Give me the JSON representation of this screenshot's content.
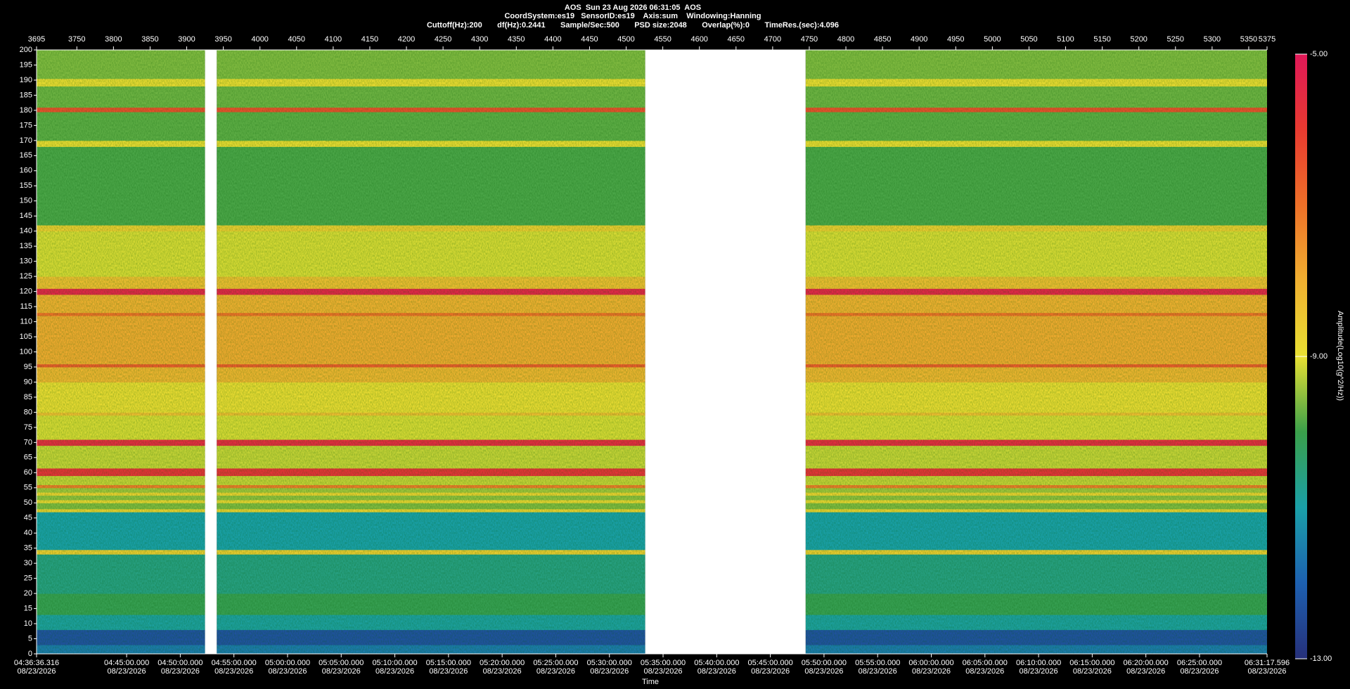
{
  "chart_data": {
    "type": "spectrogram",
    "title": "AOS  Sun 23 Aug 2026 06:31:05  AOS",
    "subtitle": "CoordSystem:es19   SensorID:es19    Axis:sum    Windowing:Hanning",
    "settings_line": "Cuttoff(Hz):200       df(Hz):0.2441       Sample/Sec:500       PSD size:2048       Overlap(%):0       TimeRes.(sec):4.096",
    "x2_label": "Time",
    "colorbar_label": "Amplitude(Log10(g^2/Hz))",
    "xlim": [
      3695,
      5375
    ],
    "xticks": [
      3695,
      3750,
      3800,
      3850,
      3900,
      3950,
      4000,
      4050,
      4100,
      4150,
      4200,
      4250,
      4300,
      4350,
      4400,
      4450,
      4500,
      4550,
      4600,
      4650,
      4700,
      4750,
      4800,
      4850,
      4900,
      4950,
      5000,
      5050,
      5100,
      5150,
      5200,
      5250,
      5300,
      5350,
      5375
    ],
    "ylim": [
      0,
      200
    ],
    "yticks": [
      0,
      5,
      10,
      15,
      20,
      25,
      30,
      35,
      40,
      45,
      50,
      55,
      60,
      65,
      70,
      75,
      80,
      85,
      90,
      95,
      100,
      105,
      110,
      115,
      120,
      125,
      130,
      135,
      140,
      145,
      150,
      155,
      160,
      165,
      170,
      175,
      180,
      185,
      190,
      195,
      200
    ],
    "x2lim": [
      16596.316,
      23477.596
    ],
    "x2ticks": [
      {
        "value": 16596.316,
        "label": "04:36:36.316"
      },
      {
        "value": 17100,
        "label": "04:45:00.000"
      },
      {
        "value": 17400,
        "label": "04:50:00.000"
      },
      {
        "value": 17700,
        "label": "04:55:00.000"
      },
      {
        "value": 18000,
        "label": "05:00:00.000"
      },
      {
        "value": 18300,
        "label": "05:05:00.000"
      },
      {
        "value": 18600,
        "label": "05:10:00.000"
      },
      {
        "value": 18900,
        "label": "05:15:00.000"
      },
      {
        "value": 19200,
        "label": "05:20:00.000"
      },
      {
        "value": 19500,
        "label": "05:25:00.000"
      },
      {
        "value": 19800,
        "label": "05:30:00.000"
      },
      {
        "value": 20100,
        "label": "05:35:00.000"
      },
      {
        "value": 20400,
        "label": "05:40:00.000"
      },
      {
        "value": 20700,
        "label": "05:45:00.000"
      },
      {
        "value": 21000,
        "label": "05:50:00.000"
      },
      {
        "value": 21300,
        "label": "05:55:00.000"
      },
      {
        "value": 21600,
        "label": "06:00:00.000"
      },
      {
        "value": 21900,
        "label": "06:05:00.000"
      },
      {
        "value": 22200,
        "label": "06:10:00.000"
      },
      {
        "value": 22500,
        "label": "06:15:00.000"
      },
      {
        "value": 22800,
        "label": "06:20:00.000"
      },
      {
        "value": 23100,
        "label": "06:25:00.000"
      },
      {
        "value": 23477.596,
        "label": "06:31:17.596"
      }
    ],
    "x2tick_dates": [
      "08/23/2026",
      "08/23/2026",
      "08/23/2026",
      "08/23/2026",
      "08/23/2026",
      "08/23/2026",
      "08/23/2026",
      "08/23/2026",
      "08/23/2026",
      "08/23/2026",
      "08/23/2026",
      "08/23/2026",
      "08/23/2026",
      "08/23/2026",
      "08/23/2026",
      "08/23/2026",
      "08/23/2026",
      "08/23/2026",
      "08/23/2026",
      "08/23/2026",
      "08/23/2026",
      "08/23/2026",
      "08/23/2026"
    ],
    "gaps": [
      [
        3925,
        3941
      ],
      [
        4526,
        4745
      ]
    ],
    "clim": [
      -13,
      -5
    ],
    "cticks": [
      {
        "value": -5,
        "label": "-5.00"
      },
      {
        "value": -9,
        "label": "-9.00"
      },
      {
        "value": -13,
        "label": "-13.00"
      }
    ],
    "colormap": [
      "#26307a",
      "#1d60b0",
      "#1aa0a8",
      "#3aa04a",
      "#e8e032",
      "#f0b030",
      "#ee7028",
      "#e83a30",
      "#e01858"
    ],
    "bands": [
      {
        "from": 0,
        "to": 3,
        "value": -11.6
      },
      {
        "from": 3,
        "to": 8,
        "value": -12.3
      },
      {
        "from": 8,
        "to": 13,
        "value": -10.9
      },
      {
        "from": 13,
        "to": 20,
        "value": -10.1
      },
      {
        "from": 20,
        "to": 33,
        "value": -10.6
      },
      {
        "from": 33,
        "to": 34.5,
        "value": -8.6
      },
      {
        "from": 34.5,
        "to": 47,
        "value": -11.0
      },
      {
        "from": 47,
        "to": 48,
        "value": -8.7
      },
      {
        "from": 48,
        "to": 50,
        "value": -9.6
      },
      {
        "from": 50,
        "to": 51,
        "value": -8.8
      },
      {
        "from": 51,
        "to": 52.5,
        "value": -9.5
      },
      {
        "from": 52.5,
        "to": 53.5,
        "value": -8.7
      },
      {
        "from": 53.5,
        "to": 55,
        "value": -9.4
      },
      {
        "from": 55,
        "to": 56,
        "value": -7.2
      },
      {
        "from": 56,
        "to": 59,
        "value": -9.2
      },
      {
        "from": 59,
        "to": 61.5,
        "value": -5.8
      },
      {
        "from": 61.5,
        "to": 69,
        "value": -9.2
      },
      {
        "from": 69,
        "to": 71,
        "value": -5.6
      },
      {
        "from": 71,
        "to": 79,
        "value": -9.1
      },
      {
        "from": 79,
        "to": 80,
        "value": -8.3
      },
      {
        "from": 80,
        "to": 90,
        "value": -8.9
      },
      {
        "from": 90,
        "to": 95,
        "value": -8.1
      },
      {
        "from": 95,
        "to": 96,
        "value": -6.6
      },
      {
        "from": 96,
        "to": 112,
        "value": -7.9
      },
      {
        "from": 112,
        "to": 113,
        "value": -7.0
      },
      {
        "from": 113,
        "to": 119,
        "value": -8.0
      },
      {
        "from": 119,
        "to": 121,
        "value": -5.4
      },
      {
        "from": 121,
        "to": 125,
        "value": -8.3
      },
      {
        "from": 125,
        "to": 140,
        "value": -9.1
      },
      {
        "from": 140,
        "to": 142,
        "value": -8.6
      },
      {
        "from": 142,
        "to": 168,
        "value": -9.9
      },
      {
        "from": 168,
        "to": 170,
        "value": -8.9
      },
      {
        "from": 170,
        "to": 179.5,
        "value": -9.8
      },
      {
        "from": 179.5,
        "to": 181,
        "value": -6.4
      },
      {
        "from": 181,
        "to": 188,
        "value": -9.7
      },
      {
        "from": 188,
        "to": 190.5,
        "value": -8.9
      },
      {
        "from": 190.5,
        "to": 200,
        "value": -9.6
      }
    ]
  }
}
